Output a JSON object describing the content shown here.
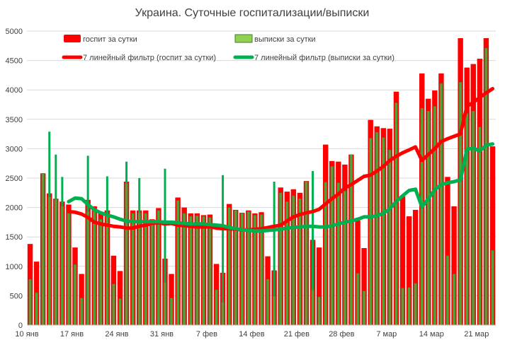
{
  "chart_data": {
    "type": "bar",
    "title": "Украина. Суточные госпитализации/выписки",
    "ylim": [
      0,
      5000
    ],
    "yticks": [
      0,
      500,
      1000,
      1500,
      2000,
      2500,
      3000,
      3500,
      4000,
      4500,
      5000
    ],
    "grid": true,
    "legend_position": "top",
    "x_tick_labels": [
      {
        "index": 0,
        "label": "10 янв"
      },
      {
        "index": 7,
        "label": "17 янв"
      },
      {
        "index": 14,
        "label": "24 янв"
      },
      {
        "index": 21,
        "label": "31 янв"
      },
      {
        "index": 28,
        "label": "7 фев"
      },
      {
        "index": 35,
        "label": "14 фев"
      },
      {
        "index": 42,
        "label": "21 фев"
      },
      {
        "index": 49,
        "label": "28 фев"
      },
      {
        "index": 56,
        "label": "7 мар"
      },
      {
        "index": 63,
        "label": "14 мар"
      },
      {
        "index": 70,
        "label": "21 мар"
      }
    ],
    "series": [
      {
        "name": "госпит за сутки",
        "kind": "bar",
        "color": "#ff0000",
        "values": [
          1380,
          1080,
          2580,
          2240,
          2150,
          2100,
          2050,
          1320,
          870,
          2130,
          2020,
          1900,
          1950,
          1180,
          920,
          2440,
          1950,
          1950,
          1950,
          1800,
          1990,
          1130,
          870,
          2170,
          2000,
          1900,
          1900,
          1870,
          1880,
          1040,
          890,
          2060,
          1960,
          1910,
          1950,
          1900,
          1920,
          1170,
          930,
          2340,
          2270,
          2310,
          2250,
          2450,
          1450,
          1320,
          3070,
          2790,
          2780,
          2730,
          2900,
          1780,
          1310,
          3490,
          3380,
          3350,
          3340,
          3970,
          2190,
          1850,
          1960,
          4280,
          3850,
          3990,
          4280,
          2520,
          2020,
          4880,
          4380,
          4440,
          4530,
          4880,
          3040
        ]
      },
      {
        "name": "выписки за сутки",
        "kind": "bar",
        "color": "#5a9e3a",
        "edge": "#3f7f2a",
        "values": [
          780,
          550,
          2580,
          2180,
          2140,
          2020,
          1950,
          1030,
          460,
          1930,
          1980,
          1800,
          1850,
          700,
          450,
          2410,
          1900,
          1910,
          1900,
          1780,
          1950,
          730,
          460,
          2120,
          1900,
          1850,
          1860,
          1850,
          1830,
          600,
          390,
          2000,
          1950,
          1900,
          1930,
          1870,
          1880,
          780,
          490,
          2250,
          2100,
          2200,
          2150,
          2440,
          600,
          480,
          2430,
          2700,
          2420,
          2280,
          2900,
          880,
          580,
          3180,
          3280,
          3190,
          2980,
          3780,
          630,
          640,
          710,
          3690,
          3640,
          3720,
          4110,
          1180,
          870,
          4130,
          3600,
          3640,
          3370,
          4710,
          1270
        ]
      },
      {
        "name": "7 линейный фильтр (госпит за сутки)",
        "kind": "line",
        "color": "#ff0000",
        "values": [
          null,
          null,
          null,
          null,
          null,
          null,
          1930,
          1920,
          1890,
          1830,
          1750,
          1720,
          1700,
          1680,
          1670,
          1650,
          1650,
          1680,
          1700,
          1730,
          1740,
          1720,
          1730,
          1700,
          1690,
          1680,
          1670,
          1670,
          1670,
          1650,
          1640,
          1640,
          1630,
          1620,
          1620,
          1630,
          1640,
          1660,
          1680,
          1700,
          1770,
          1840,
          1880,
          1910,
          1930,
          1970,
          2060,
          2150,
          2230,
          2330,
          2390,
          2460,
          2530,
          2550,
          2620,
          2700,
          2800,
          2870,
          2930,
          2980,
          3030,
          2800,
          2900,
          3000,
          3120,
          3170,
          3210,
          3250,
          3720,
          3790,
          3870,
          3950,
          4020
        ]
      },
      {
        "name": "7 линейный фильтр (выписки за сутки)",
        "kind": "line",
        "color": "#00b050",
        "values": [
          null,
          null,
          null,
          null,
          null,
          null,
          2100,
          2160,
          2150,
          2050,
          1960,
          1910,
          1870,
          1840,
          1800,
          1770,
          1760,
          1760,
          1760,
          1760,
          1760,
          1750,
          1750,
          1740,
          1730,
          1720,
          1720,
          1720,
          1710,
          1700,
          1690,
          1660,
          1640,
          1620,
          1610,
          1600,
          1600,
          1610,
          1620,
          1630,
          1650,
          1660,
          1670,
          1680,
          1680,
          1670,
          1670,
          1690,
          1720,
          1750,
          1770,
          1800,
          1840,
          1840,
          1860,
          1900,
          1980,
          2100,
          2200,
          2290,
          2310,
          2010,
          2150,
          2300,
          2390,
          2420,
          2440,
          2470,
          2990,
          3010,
          2960,
          3060,
          3080
        ]
      }
    ],
    "outlier_marks": [
      {
        "index": 3,
        "value": 3290
      },
      {
        "index": 4,
        "value": 2900
      },
      {
        "index": 5,
        "value": 2520
      },
      {
        "index": 9,
        "value": 2880
      },
      {
        "index": 12,
        "value": 2530
      },
      {
        "index": 15,
        "value": 2780
      },
      {
        "index": 17,
        "value": 2500
      },
      {
        "index": 21,
        "value": 2660
      },
      {
        "index": 30,
        "value": 2550
      },
      {
        "index": 38,
        "value": 2440
      },
      {
        "index": 44,
        "value": 2620
      }
    ]
  }
}
